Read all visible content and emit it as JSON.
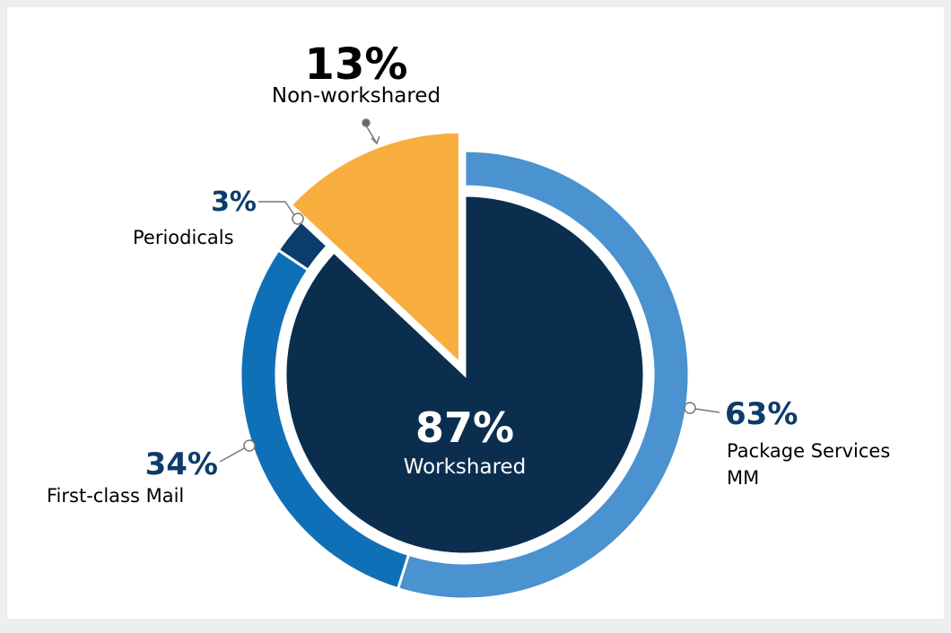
{
  "chart_data": {
    "type": "pie",
    "rings": [
      {
        "categories": [
          "Workshared",
          "Non-workshared"
        ],
        "values": [
          87,
          13
        ],
        "value_labels": [
          "87%",
          "13%"
        ],
        "colors": [
          "#0b2e4f",
          "#f8ae3f"
        ],
        "explode": [
          false,
          true
        ]
      },
      {
        "categories": [
          "Package Services MM",
          "First-class Mail",
          "Periodicals"
        ],
        "values": [
          63,
          34,
          3
        ],
        "value_labels": [
          "63%",
          "34%",
          "3%"
        ],
        "colors": [
          "#4a92d0",
          "#0f70b8",
          "#0c3c6a"
        ]
      }
    ]
  }
}
